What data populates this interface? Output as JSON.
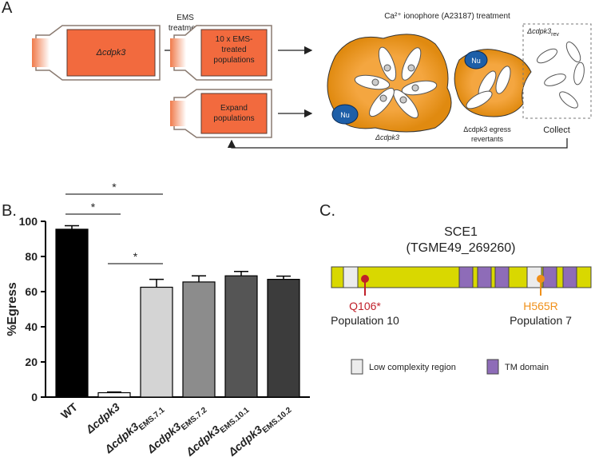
{
  "panel_a": {
    "label": "A",
    "flask_1": "Δcdpk3",
    "step_1": [
      "EMS",
      "treatment"
    ],
    "flask_2": [
      "10 x EMS-",
      "treated",
      "populations"
    ],
    "flask_3": [
      "Expand",
      "populations"
    ],
    "treatment": "Ca²⁺ ionophore  (A23187) treatment",
    "nucleus": "Nu",
    "vacuole_label": "Δcdpk3",
    "revertants": [
      "Δcdpk3 egress",
      "revertants"
    ],
    "released": {
      "main": "Δcdpk3",
      "sub": "rev"
    },
    "collect": "Collect"
  },
  "panel_b_label": "B.",
  "chart_data": {
    "type": "bar",
    "ylabel": "%Egress",
    "categories": [
      "WT",
      "Δcdpk3",
      "Δcdpk3 EMS.7.1",
      "Δcdpk3 EMS.7.2",
      "Δcdpk3 EMS.10.1",
      "Δcdpk3 EMS.10.2"
    ],
    "values": [
      95.5,
      2.5,
      62.5,
      65.5,
      69,
      67
    ],
    "errors": [
      2,
      0.4,
      4.5,
      3.5,
      2.5,
      1.8
    ],
    "colors": [
      "#000000",
      "#ffffff",
      "#d4d4d4",
      "#8c8c8c",
      "#555555",
      "#3c3c3c"
    ],
    "ylim": [
      0,
      100
    ],
    "yticks": [
      0,
      20,
      40,
      60,
      80,
      100
    ],
    "annotations": [
      "*",
      "*",
      "*"
    ]
  },
  "panel_c": {
    "label": "C.",
    "protein": "SCE1",
    "gene_id": "(TGME49_269260)",
    "mutation_1": "Q106*",
    "population_1": "Population 10",
    "mutation_2": "H565R",
    "population_2": "Population 7",
    "legend_low": "Low complexity region",
    "legend_tm": "TM domain"
  }
}
